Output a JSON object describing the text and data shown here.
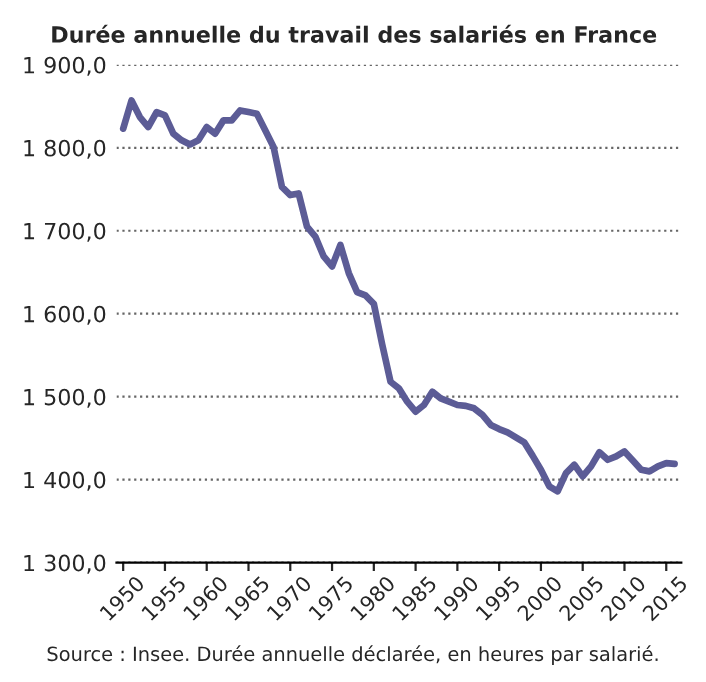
{
  "chart_data": {
    "type": "line",
    "title": "Durée annuelle du travail des salariés en France",
    "annotations": [
      "Source : Insee. Durée annuelle déclarée, en heures par salarié."
    ],
    "x": [
      1950,
      1951,
      1952,
      1953,
      1954,
      1955,
      1956,
      1957,
      1958,
      1959,
      1960,
      1961,
      1962,
      1963,
      1964,
      1965,
      1966,
      1967,
      1968,
      1969,
      1970,
      1971,
      1972,
      1973,
      1974,
      1975,
      1976,
      1977,
      1978,
      1979,
      1980,
      1981,
      1982,
      1983,
      1984,
      1985,
      1986,
      1987,
      1988,
      1989,
      1990,
      1991,
      1992,
      1993,
      1994,
      1995,
      1996,
      1997,
      1998,
      1999,
      2000,
      2001,
      2002,
      2003,
      2004,
      2005,
      2006,
      2007,
      2008,
      2009,
      2010,
      2011,
      2012,
      2013,
      2014,
      2015,
      2016
    ],
    "series": [
      {
        "color": "#5c5c96",
        "values": [
          1823,
          1857,
          1837,
          1825,
          1843,
          1839,
          1817,
          1809,
          1804,
          1809,
          1825,
          1817,
          1833,
          1833,
          1845,
          1843,
          1841,
          1821,
          1801,
          1753,
          1743,
          1745,
          1705,
          1693,
          1669,
          1657,
          1683,
          1649,
          1626,
          1622,
          1612,
          1563,
          1518,
          1510,
          1494,
          1482,
          1490,
          1506,
          1498,
          1494,
          1490,
          1489,
          1486,
          1478,
          1466,
          1461,
          1457,
          1451,
          1445,
          1429,
          1412,
          1392,
          1386,
          1408,
          1418,
          1404,
          1416,
          1433,
          1424,
          1428,
          1434,
          1423,
          1412,
          1410,
          1416,
          1420,
          1419
        ]
      }
    ],
    "xlim": [
      1949.2,
      2016.8
    ],
    "xticks": [
      1950,
      1955,
      1960,
      1965,
      1970,
      1975,
      1980,
      1985,
      1990,
      1995,
      2000,
      2005,
      2010,
      2015
    ],
    "ylim": [
      1300,
      1900
    ],
    "yticks": [
      {
        "value": 1300,
        "label": "1 300,0"
      },
      {
        "value": 1400,
        "label": "1 400,0"
      },
      {
        "value": 1500,
        "label": "1 500,0"
      },
      {
        "value": 1600,
        "label": "1 600,0"
      },
      {
        "value": 1700,
        "label": "1 700,0"
      },
      {
        "value": 1800,
        "label": "1 800,0"
      },
      {
        "value": 1900,
        "label": "1 900,0"
      }
    ],
    "grid": "y",
    "marker": "none",
    "line_style": "solid",
    "legend": false
  }
}
